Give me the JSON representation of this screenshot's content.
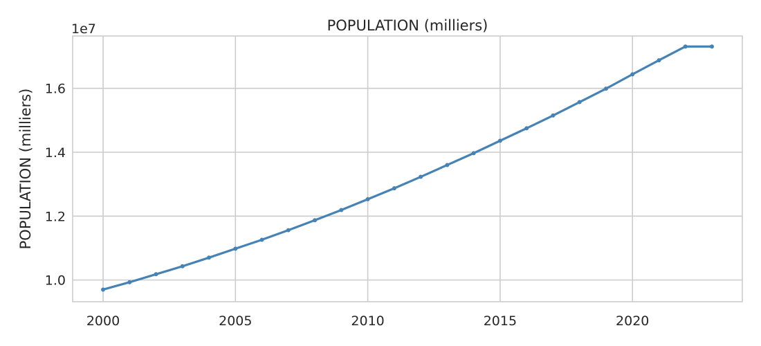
{
  "chart_data": {
    "type": "line",
    "title": "POPULATION (milliers)",
    "xlabel": "",
    "ylabel": "POPULATION (milliers)",
    "y_offset_label": "1e7",
    "y_scale": 10000000,
    "grid": true,
    "legend": "none",
    "xlim": [
      1998.85,
      2024.15
    ],
    "ylim": [
      9320000,
      17640000
    ],
    "x_ticks": [
      2000,
      2005,
      2010,
      2015,
      2020
    ],
    "x_tick_labels": [
      "2000",
      "2005",
      "2010",
      "2015",
      "2020"
    ],
    "y_ticks": [
      10000000,
      12000000,
      14000000,
      16000000
    ],
    "y_tick_labels": [
      "1.0",
      "1.2",
      "1.4",
      "1.6"
    ],
    "series": [
      {
        "name": "POPULATION (milliers)",
        "color": "#4682b4",
        "x": [
          2000,
          2001,
          2002,
          2003,
          2004,
          2005,
          2006,
          2007,
          2008,
          2009,
          2010,
          2011,
          2012,
          2013,
          2014,
          2015,
          2016,
          2017,
          2018,
          2019,
          2020,
          2021,
          2022,
          2023
        ],
        "values": [
          9700000,
          9930000,
          10180000,
          10430000,
          10700000,
          10980000,
          11260000,
          11560000,
          11870000,
          12190000,
          12530000,
          12870000,
          13230000,
          13600000,
          13970000,
          14360000,
          14750000,
          15150000,
          15570000,
          15990000,
          16440000,
          16880000,
          17310000,
          17310000
        ]
      }
    ]
  }
}
